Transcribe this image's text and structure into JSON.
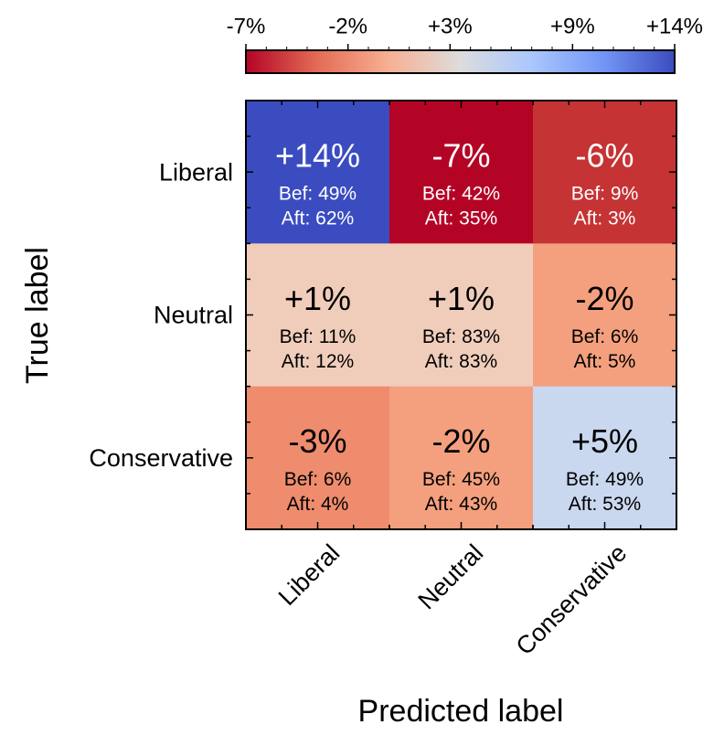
{
  "chart_data": {
    "type": "heatmap",
    "title": "",
    "xlabel": "Predicted label",
    "ylabel": "True label",
    "x_categories": [
      "Liberal",
      "Neutral",
      "Conservative"
    ],
    "y_categories": [
      "Liberal",
      "Neutral",
      "Conservative"
    ],
    "cells": [
      [
        {
          "change": "+14%",
          "change_value": 14,
          "before": "Bef: 49%",
          "after": "Aft: 62%",
          "color": "#3b4cc0",
          "text_color": "#ffffff"
        },
        {
          "change": "-7%",
          "change_value": -7,
          "before": "Bef: 42%",
          "after": "Aft: 35%",
          "color": "#b40426",
          "text_color": "#ffffff"
        },
        {
          "change": "-6%",
          "change_value": -6,
          "before": "Bef: 9%",
          "after": "Aft: 3%",
          "color": "#c53334",
          "text_color": "#ffffff"
        }
      ],
      [
        {
          "change": "+1%",
          "change_value": 1,
          "before": "Bef: 11%",
          "after": "Aft: 12%",
          "color": "#f0cdbb",
          "text_color": "#000000"
        },
        {
          "change": "+1%",
          "change_value": 1,
          "before": "Bef: 83%",
          "after": "Aft: 83%",
          "color": "#f0cdbb",
          "text_color": "#000000"
        },
        {
          "change": "-2%",
          "change_value": -2,
          "before": "Bef: 6%",
          "after": "Aft: 5%",
          "color": "#f4a07e",
          "text_color": "#000000"
        }
      ],
      [
        {
          "change": "-3%",
          "change_value": -3,
          "before": "Bef: 6%",
          "after": "Aft: 4%",
          "color": "#ef8c6e",
          "text_color": "#000000"
        },
        {
          "change": "-2%",
          "change_value": -2,
          "before": "Bef: 45%",
          "after": "Aft: 43%",
          "color": "#f4a07e",
          "text_color": "#000000"
        },
        {
          "change": "+5%",
          "change_value": 5,
          "before": "Bef: 49%",
          "after": "Aft: 53%",
          "color": "#c9d8ef",
          "text_color": "#000000"
        }
      ]
    ],
    "colorbar": {
      "range": [
        -7,
        14
      ],
      "ticks": [
        {
          "value": -7,
          "label": "-7%"
        },
        {
          "value": -2,
          "label": "-2%"
        },
        {
          "value": 3,
          "label": "+3%"
        },
        {
          "value": 9,
          "label": "+9%"
        },
        {
          "value": 14,
          "label": "+14%"
        }
      ],
      "gradient": [
        "#b40426",
        "#e36c55",
        "#f7b093",
        "#dddcdc",
        "#aac7fd",
        "#7396f5",
        "#3b4cc0"
      ]
    }
  }
}
